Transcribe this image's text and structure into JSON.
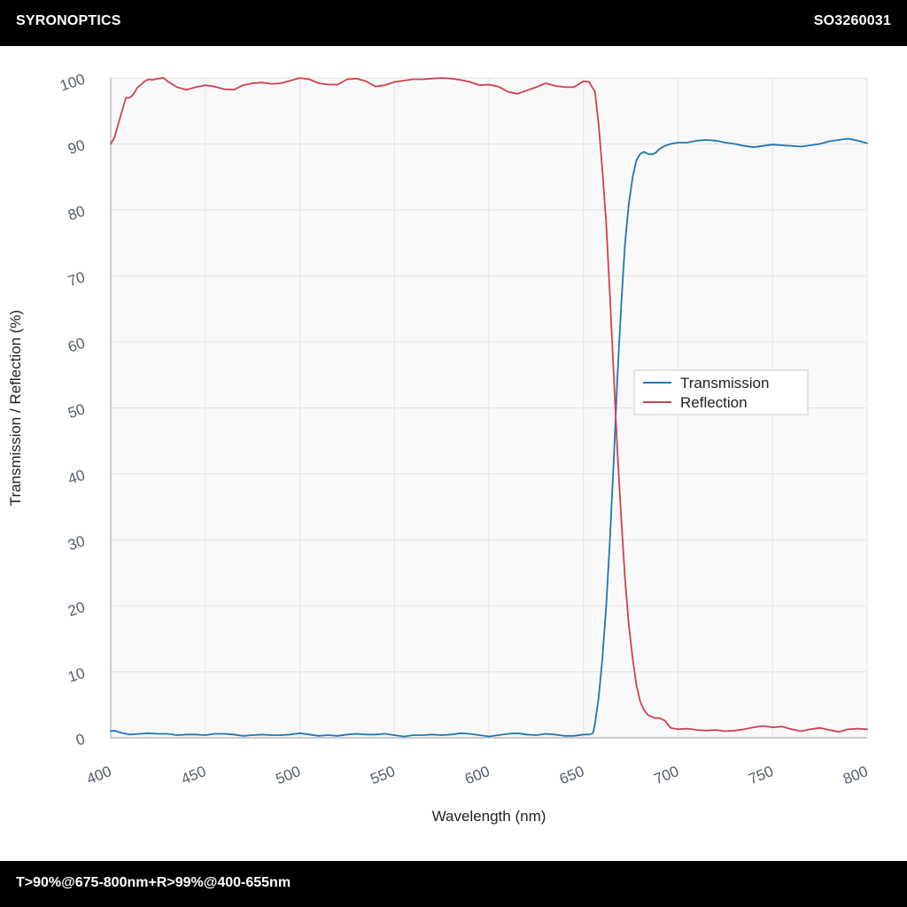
{
  "header": {
    "brand": "SYRONOPTICS",
    "product_code": "SO3260031"
  },
  "footer": {
    "spec": "T>90%@675-800nm+R>99%@400-655nm"
  },
  "colors": {
    "transmission": "#1f77b4",
    "reflection": "#d1404f",
    "plot_bg": "#f9f9fa",
    "grid": "#e3e3e6"
  },
  "chart_data": {
    "type": "line",
    "title": "",
    "xlabel": "Wavelength (nm)",
    "ylabel": "Transmission / Reflection (%)",
    "xlim": [
      400,
      800
    ],
    "ylim": [
      0,
      100
    ],
    "x_ticks": [
      400,
      450,
      500,
      550,
      600,
      650,
      700,
      750,
      800
    ],
    "y_ticks": [
      0,
      10,
      20,
      30,
      40,
      50,
      60,
      70,
      80,
      90,
      100
    ],
    "grid": true,
    "legend_position": "right-center",
    "series": [
      {
        "name": "Transmission",
        "color": "#1f77b4",
        "x": [
          400,
          402,
          405,
          410,
          415,
          420,
          425,
          430,
          435,
          440,
          445,
          450,
          455,
          460,
          465,
          470,
          475,
          480,
          485,
          490,
          495,
          500,
          505,
          510,
          515,
          520,
          525,
          530,
          535,
          540,
          545,
          550,
          555,
          560,
          565,
          570,
          575,
          580,
          585,
          590,
          595,
          600,
          605,
          610,
          615,
          620,
          625,
          630,
          635,
          640,
          645,
          650,
          653,
          655,
          656,
          658,
          660,
          662,
          664,
          666,
          668,
          670,
          672,
          674,
          676,
          678,
          680,
          682,
          684,
          686,
          688,
          690,
          693,
          696,
          700,
          705,
          710,
          715,
          720,
          725,
          730,
          735,
          740,
          745,
          750,
          755,
          760,
          765,
          770,
          775,
          780,
          785,
          790,
          795,
          800
        ],
        "values": [
          1.0,
          1.1,
          0.8,
          0.5,
          0.6,
          0.7,
          0.6,
          0.6,
          0.4,
          0.5,
          0.5,
          0.4,
          0.6,
          0.6,
          0.5,
          0.3,
          0.4,
          0.5,
          0.4,
          0.4,
          0.5,
          0.7,
          0.5,
          0.3,
          0.4,
          0.3,
          0.5,
          0.6,
          0.5,
          0.5,
          0.6,
          0.4,
          0.2,
          0.4,
          0.4,
          0.5,
          0.4,
          0.5,
          0.7,
          0.6,
          0.4,
          0.2,
          0.4,
          0.6,
          0.7,
          0.5,
          0.4,
          0.6,
          0.5,
          0.3,
          0.3,
          0.5,
          0.5,
          0.7,
          2,
          6,
          12,
          20,
          30,
          42,
          55,
          66,
          75,
          81,
          85,
          87.5,
          88.5,
          88.8,
          88.5,
          88.4,
          88.6,
          89.2,
          89.7,
          90.0,
          90.2,
          90.2,
          90.5,
          90.6,
          90.5,
          90.2,
          90.0,
          89.7,
          89.5,
          89.7,
          89.9,
          89.8,
          89.7,
          89.6,
          89.8,
          90.0,
          90.4,
          90.6,
          90.8,
          90.5,
          90.1
        ]
      },
      {
        "name": "Reflection",
        "color": "#d1404f",
        "x": [
          400,
          402,
          404,
          406,
          408,
          410,
          412,
          414,
          416,
          418,
          420,
          422,
          425,
          428,
          430,
          435,
          440,
          445,
          450,
          455,
          460,
          465,
          470,
          475,
          480,
          485,
          490,
          495,
          500,
          505,
          510,
          515,
          520,
          525,
          530,
          535,
          540,
          545,
          550,
          555,
          560,
          565,
          570,
          575,
          580,
          585,
          590,
          595,
          600,
          605,
          610,
          615,
          620,
          625,
          630,
          635,
          640,
          645,
          650,
          653,
          655,
          656,
          658,
          660,
          662,
          664,
          666,
          668,
          670,
          672,
          674,
          676,
          678,
          680,
          682,
          684,
          686,
          688,
          690,
          693,
          696,
          700,
          705,
          710,
          715,
          720,
          725,
          730,
          735,
          740,
          745,
          750,
          755,
          760,
          765,
          770,
          775,
          780,
          785,
          790,
          795,
          800
        ],
        "values": [
          90,
          91,
          93,
          95,
          97,
          97,
          97.5,
          98.5,
          99,
          99.5,
          99.8,
          99.7,
          99.9,
          100,
          99.5,
          98.6,
          98.2,
          98.6,
          98.9,
          98.7,
          98.3,
          98.2,
          98.9,
          99.2,
          99.3,
          99.1,
          99.2,
          99.6,
          100,
          99.8,
          99.2,
          99.0,
          99.0,
          99.8,
          99.9,
          99.5,
          98.7,
          98.9,
          99.4,
          99.6,
          99.8,
          99.8,
          99.9,
          100,
          99.9,
          99.7,
          99.4,
          98.9,
          99.0,
          98.7,
          97.9,
          97.6,
          98.1,
          98.6,
          99.2,
          98.8,
          98.6,
          98.6,
          99.5,
          99.4,
          98.4,
          98,
          93,
          86,
          78,
          67,
          55,
          43,
          33,
          24,
          17,
          12,
          8,
          5.5,
          4.2,
          3.5,
          3.2,
          3.0,
          3.0,
          2.6,
          1.5,
          1.3,
          1.4,
          1.2,
          1.1,
          1.2,
          1.0,
          1.1,
          1.3,
          1.6,
          1.8,
          1.6,
          1.7,
          1.3,
          1.0,
          1.3,
          1.5,
          1.2,
          0.9,
          1.3,
          1.4,
          1.3
        ]
      }
    ]
  }
}
